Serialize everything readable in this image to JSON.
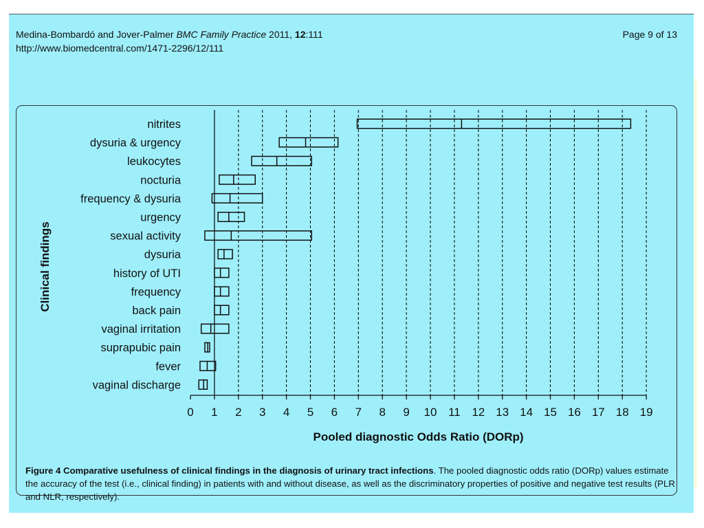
{
  "header": {
    "authors": "Medina-Bombardó and Jover-Palmer",
    "journal": "BMC Family Practice",
    "year": "2011,",
    "volume": "12",
    "article": ":111",
    "url": "http://www.biomedcentral.com/1471-2296/12/111",
    "page": "Page 9 of 13"
  },
  "caption": {
    "label": "Figure 4 Comparative usefulness of clinical findings in the diagnosis of urinary tract infections",
    "text": ". The pooled diagnostic odds ratio (DORp) values estimate the accuracy of the test (i.e., clinical finding) in patients with and without disease, as well as the discriminatory properties of positive and negative test results (PLR and NLR, respectively)."
  },
  "colors": {
    "background": "#9feffb",
    "ink": "#111111"
  },
  "chart_data": {
    "type": "box-interval",
    "xlabel": "Pooled diagnostic Odds Ratio (DORp)",
    "ylabel": "Clinical findings",
    "xlim": [
      0,
      19
    ],
    "xticks": [
      0,
      1,
      2,
      3,
      4,
      5,
      6,
      7,
      8,
      9,
      10,
      11,
      12,
      13,
      14,
      15,
      16,
      17,
      18,
      19
    ],
    "reference_line": 1,
    "grid": "dashed vertical",
    "findings": [
      {
        "label": "nitrites",
        "low": 6.95,
        "point": 11.3,
        "high": 18.35
      },
      {
        "label": "dysuria & urgency",
        "low": 3.7,
        "point": 4.8,
        "high": 6.15
      },
      {
        "label": "leukocytes",
        "low": 2.55,
        "point": 3.6,
        "high": 5.05
      },
      {
        "label": "nocturia",
        "low": 1.2,
        "point": 1.8,
        "high": 2.7
      },
      {
        "label": "frequency & dysuria",
        "low": 0.9,
        "point": 1.65,
        "high": 3.0
      },
      {
        "label": "urgency",
        "low": 1.15,
        "point": 1.6,
        "high": 2.25
      },
      {
        "label": "sexual activity",
        "low": 0.6,
        "point": 1.7,
        "high": 5.05
      },
      {
        "label": "dysuria",
        "low": 1.15,
        "point": 1.4,
        "high": 1.75
      },
      {
        "label": "history of UTI",
        "low": 1.0,
        "point": 1.25,
        "high": 1.6
      },
      {
        "label": "frequency",
        "low": 1.0,
        "point": 1.25,
        "high": 1.6
      },
      {
        "label": "back pain",
        "low": 1.0,
        "point": 1.25,
        "high": 1.6
      },
      {
        "label": "vaginal irritation",
        "low": 0.45,
        "point": 0.85,
        "high": 1.6
      },
      {
        "label": "suprapubic pain",
        "low": 0.6,
        "point": 0.72,
        "high": 0.8
      },
      {
        "label": "fever",
        "low": 0.4,
        "point": 0.7,
        "high": 1.05
      },
      {
        "label": "vaginal discharge",
        "low": 0.35,
        "point": 0.55,
        "high": 0.7
      }
    ]
  }
}
